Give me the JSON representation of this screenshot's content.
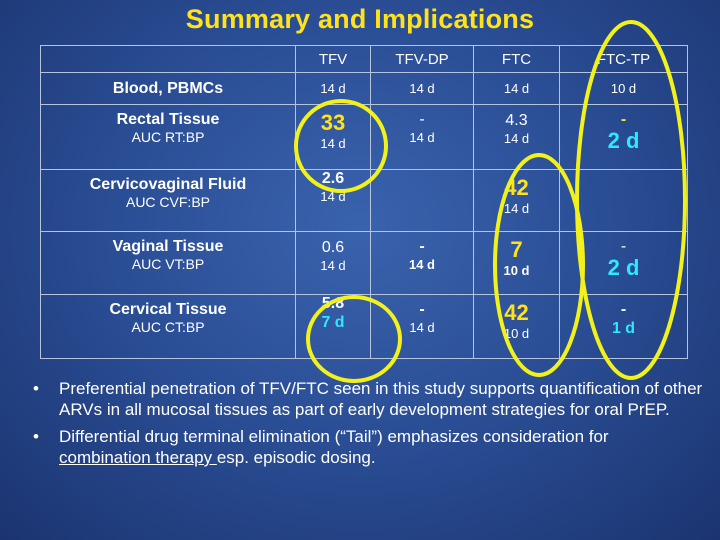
{
  "title": "Summary and Implications",
  "table": {
    "headers": [
      "",
      "TFV",
      "TFV-DP",
      "FTC",
      "FTC-TP"
    ],
    "rows": [
      {
        "name": "Blood, PBMCs",
        "sub": "",
        "tfv": {
          "value": "",
          "days": "14 d"
        },
        "tfvdp": {
          "value": "",
          "days": "14 d"
        },
        "ftc": {
          "value": "",
          "days": "14 d"
        },
        "ftctp": {
          "value": "",
          "days": "10 d"
        }
      },
      {
        "name": "Rectal Tissue",
        "sub": "AUC RT:BP",
        "tfv": {
          "value": "33",
          "days": "14 d"
        },
        "tfvdp": {
          "value": "-",
          "days": "14 d"
        },
        "ftc": {
          "value": "4.3",
          "days": "14 d"
        },
        "ftctp": {
          "value": "-",
          "days": "2 d"
        }
      },
      {
        "name": "Cervicovaginal Fluid",
        "sub": "AUC CVF:BP",
        "tfv": {
          "value": "2.6",
          "days": "14 d"
        },
        "tfvdp": {
          "value": "",
          "days": ""
        },
        "ftc": {
          "value": "42",
          "days": "14 d"
        },
        "ftctp": {
          "value": "",
          "days": ""
        }
      },
      {
        "name": "Vaginal Tissue",
        "sub": "AUC VT:BP",
        "tfv": {
          "value": "0.6",
          "days": "14 d"
        },
        "tfvdp": {
          "value": "-",
          "days": "14 d"
        },
        "ftc": {
          "value": "7",
          "days": "10 d"
        },
        "ftctp": {
          "value": "-",
          "days": "2 d"
        }
      },
      {
        "name": "Cervical Tissue",
        "sub": "AUC CT:BP",
        "tfv": {
          "value": "5.8",
          "days": "7 d"
        },
        "tfvdp": {
          "value": "-",
          "days": "14 d"
        },
        "ftc": {
          "value": "42",
          "days": "10 d"
        },
        "ftctp": {
          "value": "-",
          "days": "1 d"
        }
      }
    ]
  },
  "bullets": {
    "b1": "Preferential penetration of TFV/FTC seen in this study supports quantification of other ARVs in all mucosal tissues as part of early development strategies for oral PrEP.",
    "b2_pre": "Differential drug terminal elimination (“Tail”) emphasizes consideration for ",
    "b2_link": "combination therapy ",
    "b2_post": "esp. episodic dosing."
  },
  "colors": {
    "title": "#ffe21a",
    "highlight_oval": "#f2f21a",
    "emphasis_days": "#2ee8ff",
    "background": "#2b4f97"
  }
}
